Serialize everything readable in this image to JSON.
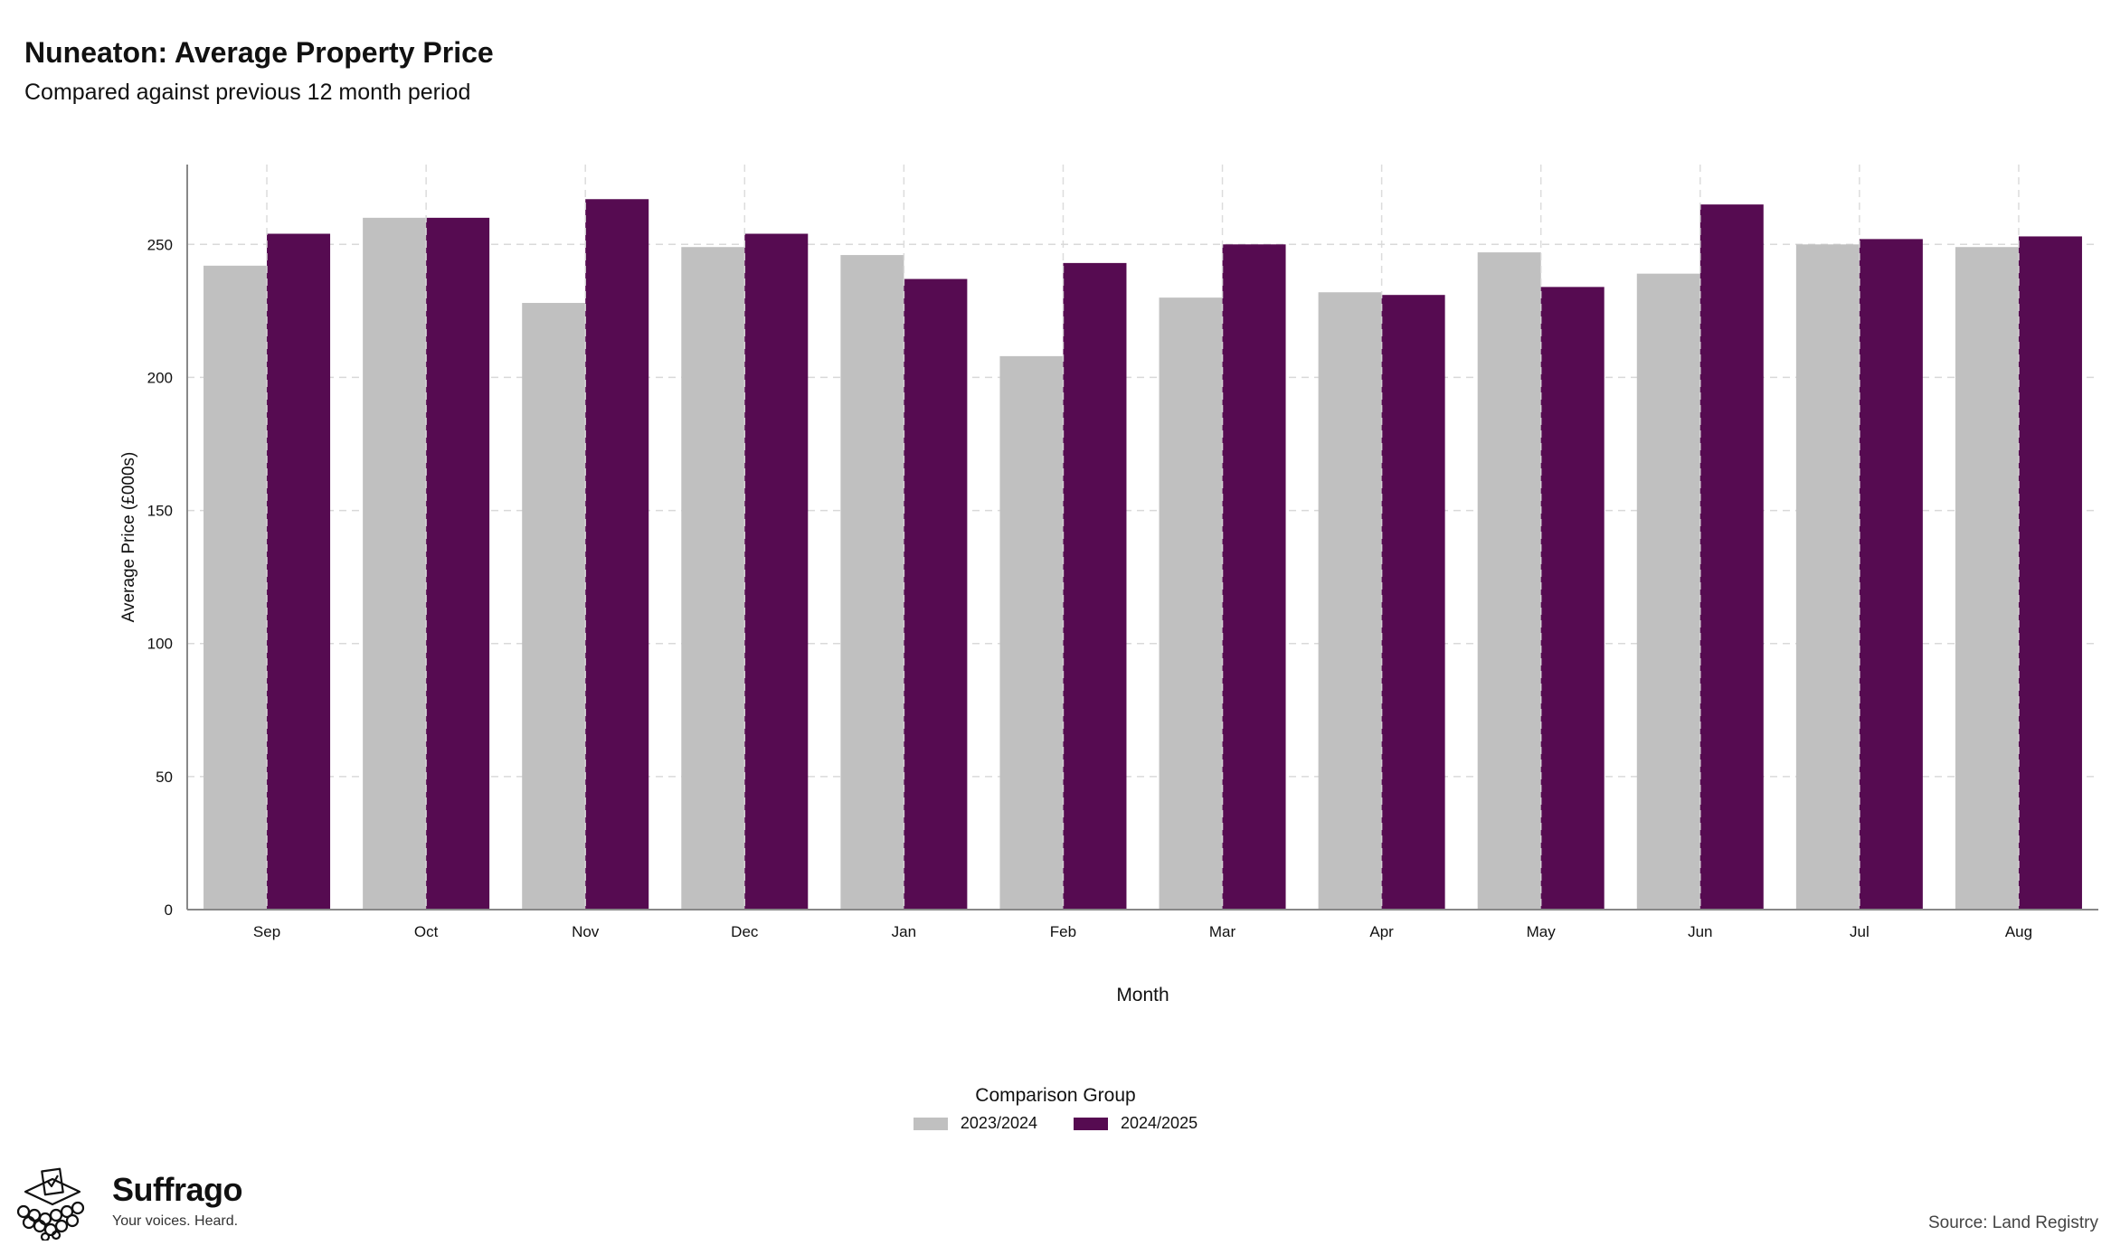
{
  "title": "Nuneaton: Average Property Price",
  "subtitle": "Compared against previous 12 month period",
  "source": "Source: Land Registry",
  "brand": {
    "name": "Suffrago",
    "tagline": "Your voices. Heard."
  },
  "colors": {
    "series_2023_2024": "#c0c0c0",
    "series_2024_2025": "#560b51",
    "grid": "#d9d9d9",
    "axis": "#888888"
  },
  "chart_data": {
    "type": "bar",
    "xlabel": "Month",
    "ylabel": "Average Price (£000s)",
    "ylim": [
      0,
      280
    ],
    "yticks": [
      0,
      50,
      100,
      150,
      200,
      250
    ],
    "grid": true,
    "legend_placement": "bottom-center",
    "legend_title": "Comparison Group",
    "categories": [
      "Sep",
      "Oct",
      "Nov",
      "Dec",
      "Jan",
      "Feb",
      "Mar",
      "Apr",
      "May",
      "Jun",
      "Jul",
      "Aug"
    ],
    "series": [
      {
        "name": "2023/2024",
        "values": [
          242,
          260,
          228,
          249,
          246,
          208,
          230,
          232,
          247,
          239,
          250,
          249
        ]
      },
      {
        "name": "2024/2025",
        "values": [
          254,
          260,
          267,
          254,
          237,
          243,
          250,
          231,
          234,
          265,
          252,
          253
        ]
      }
    ]
  }
}
